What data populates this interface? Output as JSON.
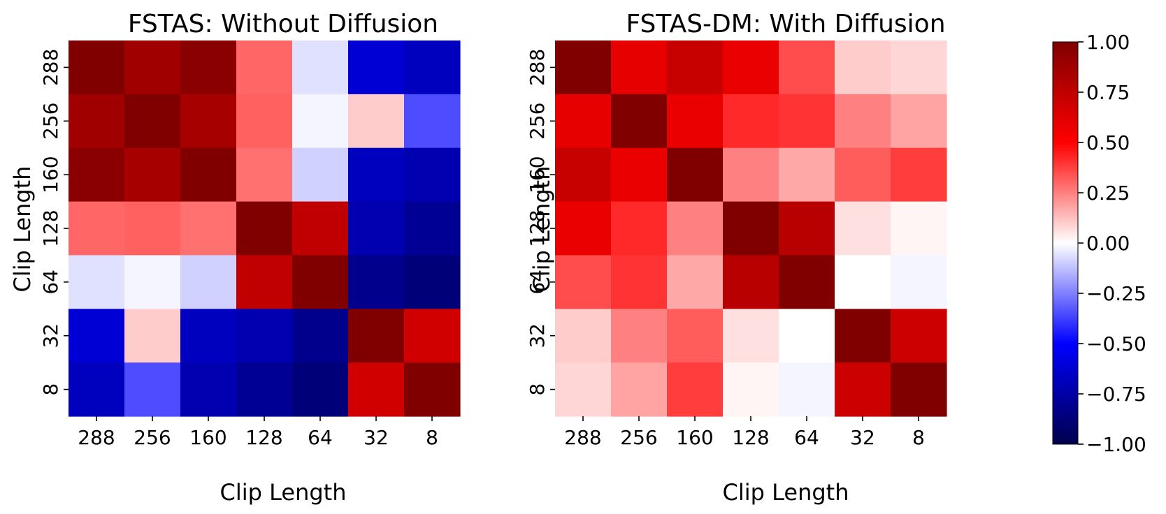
{
  "chart_data": [
    {
      "type": "heatmap",
      "title": "FSTAS: Without Diffusion",
      "xlabel": "Clip Length",
      "ylabel": "Clip Length",
      "x_categories": [
        "288",
        "256",
        "160",
        "128",
        "64",
        "32",
        "8"
      ],
      "y_categories": [
        "288",
        "256",
        "160",
        "128",
        "64",
        "32",
        "8"
      ],
      "values": [
        [
          1.0,
          0.87,
          0.96,
          0.3,
          -0.06,
          -0.62,
          -0.68
        ],
        [
          0.87,
          1.0,
          0.85,
          0.31,
          -0.02,
          0.1,
          -0.35
        ],
        [
          0.96,
          0.85,
          1.0,
          0.28,
          -0.09,
          -0.68,
          -0.72
        ],
        [
          0.3,
          0.31,
          0.28,
          1.0,
          0.75,
          -0.72,
          -0.8
        ],
        [
          -0.06,
          -0.02,
          -0.09,
          0.75,
          1.0,
          -0.82,
          -0.88
        ],
        [
          -0.62,
          0.1,
          -0.68,
          -0.72,
          -0.82,
          1.0,
          0.68
        ],
        [
          -0.68,
          -0.35,
          -0.72,
          -0.8,
          -0.88,
          0.68,
          1.0
        ]
      ],
      "vmin": -1.0,
      "vmax": 1.0
    },
    {
      "type": "heatmap",
      "title": "FSTAS-DM: With Diffusion",
      "xlabel": "Clip Length",
      "ylabel": "Clip Length",
      "x_categories": [
        "288",
        "256",
        "160",
        "128",
        "64",
        "32",
        "8"
      ],
      "y_categories": [
        "288",
        "256",
        "160",
        "128",
        "64",
        "32",
        "8"
      ],
      "values": [
        [
          1.0,
          0.6,
          0.72,
          0.58,
          0.35,
          0.1,
          0.08
        ],
        [
          0.6,
          1.0,
          0.58,
          0.42,
          0.4,
          0.25,
          0.18
        ],
        [
          0.72,
          0.58,
          1.0,
          0.25,
          0.17,
          0.32,
          0.38
        ],
        [
          0.58,
          0.42,
          0.25,
          1.0,
          0.78,
          0.06,
          0.02
        ],
        [
          0.35,
          0.4,
          0.17,
          0.78,
          1.0,
          0.0,
          -0.02
        ],
        [
          0.1,
          0.25,
          0.32,
          0.06,
          0.0,
          1.0,
          0.7
        ],
        [
          0.08,
          0.18,
          0.38,
          0.02,
          -0.02,
          0.7,
          1.0
        ]
      ],
      "vmin": -1.0,
      "vmax": 1.0
    }
  ],
  "colorbar": {
    "colormap": "seismic",
    "ticks": [
      1.0,
      0.75,
      0.5,
      0.25,
      0.0,
      -0.25,
      -0.5,
      -0.75,
      -1.0
    ],
    "tick_labels": [
      "1.00",
      "0.75",
      "0.50",
      "0.25",
      "0.00",
      "−0.25",
      "−0.50",
      "−0.75",
      "−1.00"
    ]
  }
}
